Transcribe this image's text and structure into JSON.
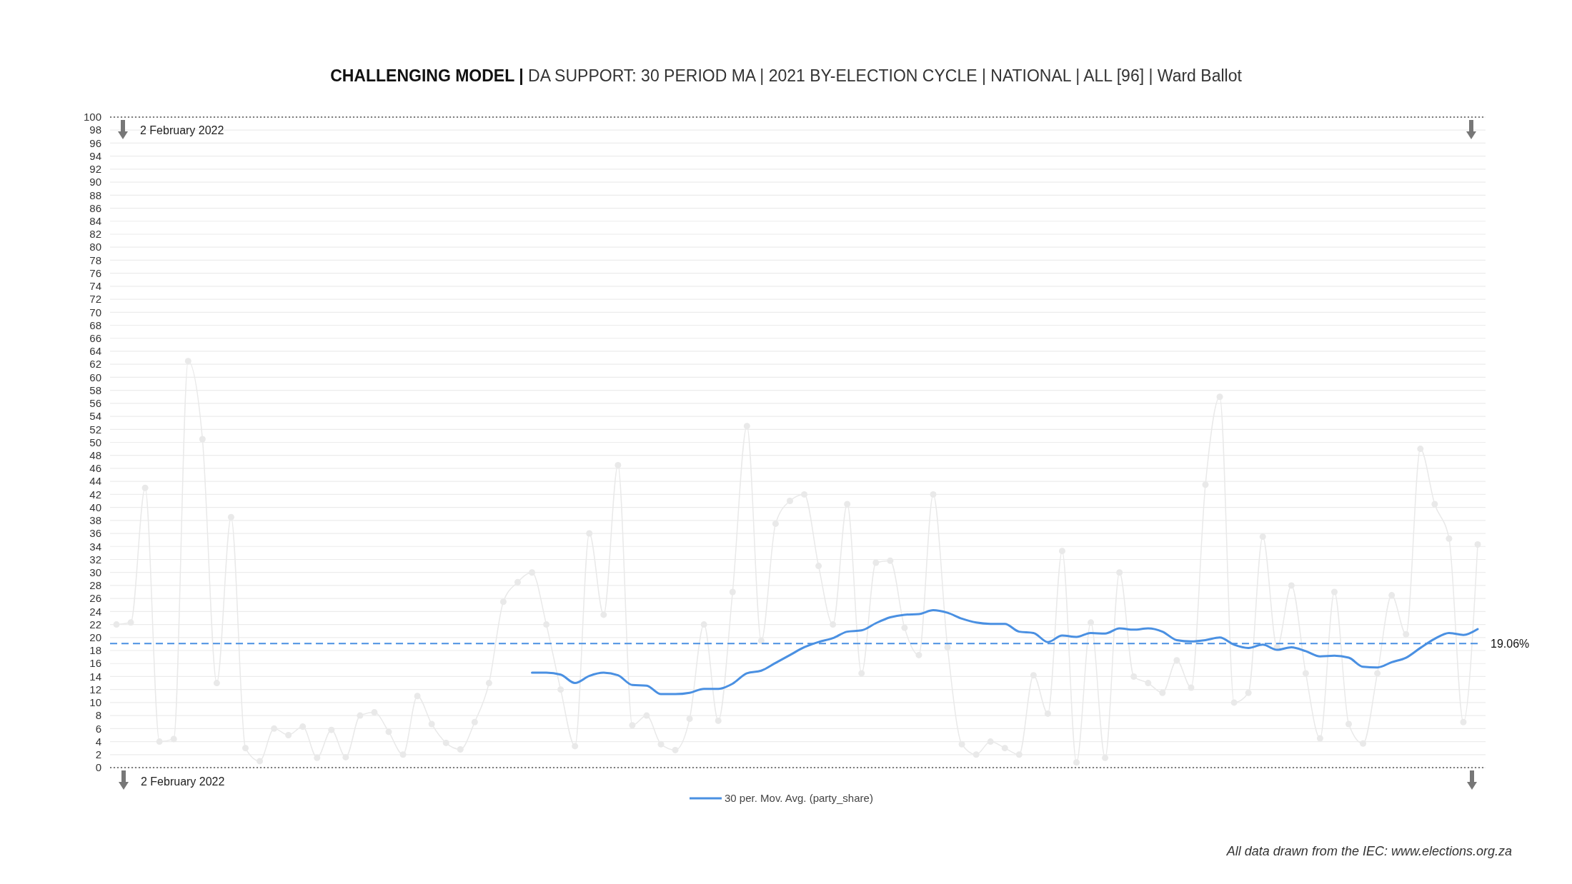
{
  "chart_data": {
    "type": "line",
    "title": "CHALLENGING MODEL |",
    "subtitle": "DA SUPPORT: 30 PERIOD MA | 2021 BY-ELECTION CYCLE | NATIONAL | ALL [96] | Ward Ballot",
    "categories": [
      null,
      null,
      null,
      null,
      null,
      null,
      null,
      null,
      null,
      null,
      null,
      null,
      null,
      null,
      null,
      null,
      null,
      null,
      null,
      null,
      null,
      null,
      null,
      null,
      null,
      null,
      null,
      null,
      null,
      null,
      null,
      null,
      null,
      null,
      null,
      null,
      null,
      null,
      null,
      null,
      null,
      null,
      null,
      null,
      null,
      null,
      null,
      null,
      null,
      null,
      null,
      null,
      null,
      null,
      null,
      null,
      null,
      null,
      null,
      null,
      null,
      null,
      null,
      null,
      null,
      null,
      null,
      null,
      null,
      null,
      null,
      null,
      null,
      null,
      null,
      null,
      null,
      null,
      null,
      null,
      null,
      null,
      null,
      null,
      null,
      null,
      null,
      null,
      null,
      null,
      null,
      null,
      null,
      null,
      null,
      null
    ],
    "series": [
      {
        "color": "#e9e9e9",
        "marker": "circle",
        "values": [
          22,
          22.3,
          43,
          4,
          4.4,
          62.5,
          50.5,
          13,
          38.5,
          3,
          1,
          6,
          5,
          6.3,
          1.5,
          5.8,
          1.6,
          8,
          8.5,
          5.5,
          2,
          11,
          6.7,
          3.8,
          2.8,
          7,
          13,
          25.5,
          28.5,
          30,
          22,
          12,
          3.3,
          36,
          23.5,
          46.5,
          6.5,
          8,
          3.6,
          2.7,
          7.5,
          22,
          7.2,
          27,
          52.5,
          19.5,
          37.5,
          41,
          42,
          31,
          22,
          40.5,
          14.5,
          31.5,
          31.8,
          21.5,
          17.3,
          42,
          18.5,
          3.6,
          2,
          4,
          3,
          2,
          14.2,
          8.3,
          33.3,
          0.8,
          22.3,
          1.5,
          30,
          14,
          13,
          11.5,
          16.5,
          12.3,
          43.5,
          57,
          10,
          11.5,
          35.5,
          18.5,
          28,
          14.5,
          4.5,
          27,
          6.7,
          3.7,
          14.5,
          26.5,
          20.5,
          49,
          40.5,
          35.2,
          7,
          34.3
        ]
      },
      {
        "name": "30 per. Mov. Avg. (party_share)",
        "color": "#4a90e2",
        "marker": "none",
        "values": [
          null,
          null,
          null,
          null,
          null,
          null,
          null,
          null,
          null,
          null,
          null,
          null,
          null,
          null,
          null,
          null,
          null,
          null,
          null,
          null,
          null,
          null,
          null,
          null,
          null,
          null,
          null,
          null,
          null,
          14.6,
          14.6,
          14.3,
          13,
          14.1,
          14.6,
          14.2,
          12.7,
          12.6,
          11.3,
          11.3,
          11.5,
          12.1,
          12.1,
          12.9,
          14.5,
          14.9,
          16.1,
          17.3,
          18.5,
          19.3,
          19.9,
          20.9,
          21.1,
          22.2,
          23.1,
          23.5,
          23.6,
          24.2,
          23.8,
          22.9,
          22.3,
          22.1,
          22.1,
          20.9,
          20.7,
          19.3,
          20.3,
          20.1,
          20.7,
          20.6,
          21.4,
          21.2,
          21.4,
          20.9,
          19.6,
          19.4,
          19.6,
          20,
          18.9,
          18.4,
          18.9,
          18.1,
          18.5,
          17.9,
          17.1,
          17.2,
          16.9,
          15.5,
          15.4,
          16.2,
          16.9,
          18.4,
          19.8,
          20.7,
          20.4,
          21.3
        ]
      }
    ],
    "ylim": [
      0,
      100
    ],
    "yticks": [
      0,
      2,
      4,
      6,
      8,
      10,
      12,
      14,
      16,
      18,
      20,
      22,
      24,
      26,
      28,
      30,
      32,
      34,
      36,
      38,
      40,
      42,
      44,
      46,
      48,
      50,
      52,
      54,
      56,
      58,
      60,
      62,
      64,
      66,
      68,
      70,
      72,
      74,
      76,
      78,
      80,
      82,
      84,
      86,
      88,
      90,
      92,
      94,
      96,
      98,
      100
    ],
    "grid": "y",
    "legend": "bottom",
    "ref_lines": [
      {
        "axis": "y",
        "value": 19.06,
        "label": "19.06%",
        "color": "#4a90e2",
        "line_style": "dashed"
      }
    ],
    "annotations": [
      "2 February 2022",
      "2 February 2022",
      "All data drawn from the IEC: www.elections.org.za"
    ]
  }
}
